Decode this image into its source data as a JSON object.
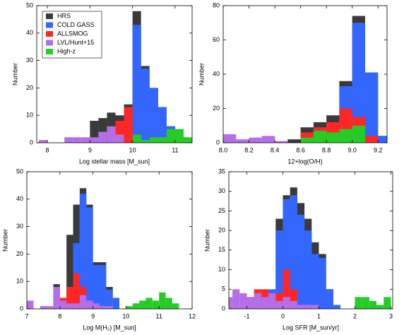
{
  "chart_data": [
    {
      "type": "histogram",
      "xlabel": "Log stellar mass [M_sun]",
      "ylabel": "Number",
      "legend": "upper left",
      "xlim": [
        7.75,
        11.4
      ],
      "xticks": [
        8,
        9,
        10,
        11
      ],
      "ylim": [
        0,
        50
      ],
      "yticks": [
        0,
        10,
        20,
        30,
        40,
        50
      ],
      "bins": [
        7.8,
        8,
        8.2,
        8.4,
        8.6,
        8.8,
        9,
        9.2,
        9.4,
        9.6,
        9.8,
        10,
        10.2,
        10.4,
        10.6,
        10.8,
        11,
        11.2,
        11.4
      ],
      "series": [
        {
          "name": "HRS",
          "color": "#3a3a3a",
          "values": [
            0,
            0,
            0,
            0,
            0,
            0,
            8,
            9,
            11,
            10,
            14,
            48,
            28,
            20,
            13,
            6,
            2,
            0
          ]
        },
        {
          "name": "COLD GASS",
          "color": "#3366ff",
          "values": [
            0,
            0,
            0,
            0,
            0,
            0,
            0,
            0,
            0,
            0,
            0,
            43,
            27,
            20,
            13,
            6,
            0,
            0
          ]
        },
        {
          "name": "ALLSMOG",
          "color": "#ff2626",
          "values": [
            0,
            0,
            0,
            0,
            0,
            0,
            0,
            0,
            0,
            8,
            13,
            0,
            0,
            0,
            0,
            0,
            0,
            0
          ]
        },
        {
          "name": "LVL/Hunt+15",
          "color": "#b46ee6",
          "values": [
            1,
            0,
            0,
            2,
            2,
            2,
            2,
            4,
            6,
            3,
            0,
            0,
            0,
            0,
            0,
            0,
            0,
            0
          ]
        },
        {
          "name": "High-z",
          "color": "#26cc26",
          "values": [
            0,
            0,
            0,
            0,
            0,
            0,
            0,
            0,
            0,
            0,
            0,
            3,
            1,
            2,
            2,
            5,
            5,
            2
          ]
        }
      ]
    },
    {
      "type": "histogram",
      "xlabel": "12+log(O/H)",
      "ylabel": "Number",
      "xlim": [
        8.0,
        9.27
      ],
      "xticks": [
        {
          "value": 8,
          "label": "8.0"
        },
        {
          "value": 8.2,
          "label": "8.2"
        },
        {
          "value": 8.4,
          "label": "8.4"
        },
        {
          "value": 8.6,
          "label": "8.6"
        },
        {
          "value": 8.8,
          "label": "8.8"
        },
        {
          "value": 9,
          "label": "9.0"
        },
        {
          "value": 9.2,
          "label": "9.2"
        }
      ],
      "ylim": [
        0,
        80
      ],
      "yticks": [
        0,
        20,
        40,
        60,
        80
      ],
      "bins": [
        8,
        8.1,
        8.2,
        8.3,
        8.4,
        8.5,
        8.6,
        8.7,
        8.8,
        8.9,
        9,
        9.1,
        9.2,
        9.3
      ],
      "series": [
        {
          "values": [
            0,
            0,
            0,
            0,
            0,
            2,
            9,
            12,
            16,
            36,
            74,
            41,
            4
          ]
        },
        {
          "values": [
            0,
            0,
            0,
            0,
            0,
            0,
            0,
            0,
            10,
            33,
            70,
            41,
            4
          ]
        },
        {
          "values": [
            0,
            0,
            0,
            0,
            0,
            0,
            6,
            9,
            12,
            20,
            15,
            4,
            0
          ]
        },
        {
          "values": [
            5,
            2,
            3,
            4,
            1,
            0,
            1,
            1,
            1,
            0,
            0,
            0,
            0
          ]
        },
        {
          "values": [
            0,
            0,
            0,
            0,
            0,
            0,
            3,
            7,
            6,
            8,
            10,
            0,
            0
          ]
        }
      ]
    },
    {
      "type": "histogram",
      "xlabel": "Log M(H₂) [M_sun]",
      "ylabel": "Number",
      "xlim": [
        7,
        12
      ],
      "xticks": [
        7,
        8,
        9,
        10,
        11,
        12
      ],
      "ylim": [
        0,
        50
      ],
      "yticks": [
        0,
        10,
        20,
        30,
        40,
        50
      ],
      "bins": [
        7,
        7.2,
        7.4,
        7.6,
        7.8,
        8,
        8.2,
        8.4,
        8.6,
        8.8,
        9,
        9.2,
        9.4,
        9.6,
        9.8,
        10,
        10.2,
        10.4,
        10.6,
        10.8,
        11,
        11.2,
        11.4,
        11.6,
        11.8,
        12
      ],
      "series": [
        {
          "values": [
            0,
            0,
            0,
            0,
            9,
            0,
            27,
            38,
            44,
            38,
            17,
            17,
            8,
            0,
            0,
            0,
            0,
            0,
            0,
            0,
            0,
            0,
            0,
            0,
            0
          ]
        },
        {
          "values": [
            0,
            0,
            0,
            0,
            0,
            0,
            0,
            24,
            42,
            37,
            16,
            16,
            7,
            4,
            0,
            0,
            0,
            0,
            0,
            0,
            0,
            0,
            0,
            0,
            0
          ]
        },
        {
          "values": [
            0,
            0,
            0,
            0,
            0,
            4,
            8,
            13,
            8,
            3,
            1,
            0,
            0,
            0,
            0,
            0,
            0,
            0,
            0,
            0,
            0,
            0,
            0,
            0,
            0
          ]
        },
        {
          "values": [
            3,
            0,
            1,
            1,
            8,
            3,
            2,
            2,
            5,
            3,
            2,
            1,
            1,
            0,
            0,
            0,
            0,
            0,
            0,
            0,
            0,
            0,
            0,
            0,
            0
          ]
        },
        {
          "values": [
            0,
            0,
            0,
            0,
            0,
            0,
            0,
            0,
            0,
            0,
            0,
            0,
            0,
            0,
            0,
            1,
            2,
            3,
            4,
            3,
            6,
            4,
            2,
            0,
            0
          ]
        }
      ]
    },
    {
      "type": "histogram",
      "xlabel": "Log SFR [M_sun/yr]",
      "ylabel": "Number",
      "xlim": [
        -1.5,
        3.05
      ],
      "xticks": [
        -1,
        0,
        1,
        2,
        3
      ],
      "ylim": [
        0,
        35
      ],
      "yticks": [
        0,
        5,
        10,
        15,
        20,
        25,
        30,
        35
      ],
      "bins": [
        -1.6,
        -1.4,
        -1.2,
        -1,
        -0.8,
        -0.6,
        -0.4,
        -0.2,
        0,
        0.2,
        0.4,
        0.6,
        0.8,
        1,
        1.2,
        1.4,
        1.6,
        1.8,
        2,
        2.2,
        2.4,
        2.6,
        2.8,
        3
      ],
      "series": [
        {
          "values": [
            0,
            0,
            0,
            0,
            0,
            0,
            0,
            23,
            29,
            31,
            27,
            23,
            17,
            14,
            5,
            0,
            0,
            0,
            0,
            0,
            0,
            0,
            0
          ]
        },
        {
          "values": [
            0,
            0,
            0,
            0,
            0,
            3,
            5,
            20,
            28,
            29,
            24,
            20,
            14,
            13,
            5,
            1,
            0,
            0,
            0,
            0,
            0,
            0,
            0
          ]
        },
        {
          "values": [
            0,
            0,
            0,
            3,
            5,
            5,
            4,
            4,
            10,
            5,
            0,
            0,
            0,
            0,
            0,
            0,
            0,
            0,
            0,
            0,
            0,
            0,
            0
          ]
        },
        {
          "values": [
            3,
            5,
            4,
            3,
            4,
            3,
            4,
            2,
            3,
            2,
            1,
            1,
            1,
            0,
            0,
            0,
            0,
            0,
            0,
            0,
            0,
            0,
            0
          ]
        },
        {
          "values": [
            0,
            0,
            0,
            0,
            0,
            0,
            0,
            0,
            0,
            0,
            0,
            0,
            0,
            0,
            0,
            0,
            0,
            0,
            3,
            3,
            2,
            1,
            3
          ]
        }
      ]
    }
  ]
}
